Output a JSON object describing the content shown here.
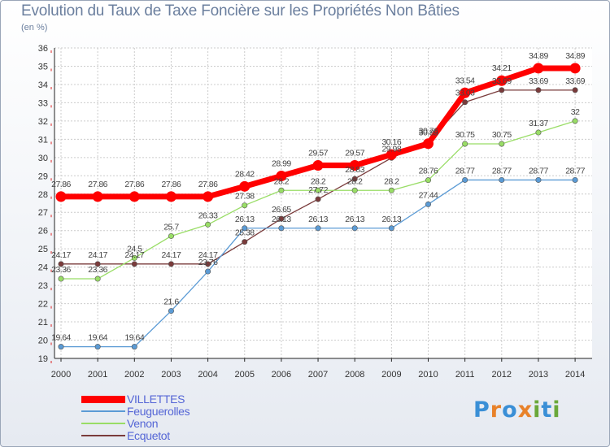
{
  "title": "Evolution du Taux de Taxe Foncière sur les Propriétés Non Bâties",
  "unit": "(en %)",
  "logo": {
    "letters": [
      "P",
      "r",
      "o",
      "x",
      "i",
      "t",
      "i"
    ],
    "colors": [
      "#3a8fd6",
      "#e8822a",
      "#3a8fd6",
      "#e8822a",
      "#6aa83a",
      "#3a8fd6",
      "#6aa83a"
    ]
  },
  "chart_data": {
    "type": "line",
    "title": "Evolution du Taux de Taxe Foncière sur les Propriétés Non Bâties",
    "ylabel": "(en %)",
    "xlabel": "",
    "x": [
      "2000",
      "2001",
      "2002",
      "2003",
      "2004",
      "2005",
      "2006",
      "2007",
      "2008",
      "2009",
      "2010",
      "2011",
      "2012",
      "2013",
      "2014"
    ],
    "ylim": [
      19,
      36
    ],
    "yticks": [
      19,
      20,
      21,
      22,
      23,
      24,
      25,
      26,
      27,
      28,
      29,
      30,
      31,
      32,
      33,
      34,
      35,
      36
    ],
    "grid": true,
    "legend": "bottom-left",
    "series": [
      {
        "name": "VILLETTES",
        "color": "#ff0000",
        "values": [
          27.86,
          27.86,
          27.86,
          27.86,
          27.86,
          28.42,
          28.99,
          29.57,
          29.57,
          30.16,
          30.76,
          33.54,
          34.21,
          34.89,
          34.89
        ],
        "labels": [
          "27.86",
          "27.86",
          "27.86",
          "27.86",
          "27.86",
          "28.42",
          "28.99",
          "29.57",
          "29.57",
          "30.16",
          "30.76",
          "33.54",
          "34.21",
          "34.89",
          "34.89"
        ]
      },
      {
        "name": "Feuguerolles",
        "color": "#5b9bd5",
        "values": [
          19.64,
          19.64,
          19.64,
          21.6,
          23.76,
          26.13,
          26.13,
          26.13,
          26.13,
          26.13,
          27.44,
          28.77,
          28.77,
          28.77,
          28.77
        ],
        "labels": [
          "19.64",
          "19.64",
          "19.64",
          "21.6",
          "23.76",
          "26.13",
          "26.13",
          "26.13",
          "26.13",
          "26.13",
          "27.44",
          "28.77",
          "28.77",
          "28.77",
          "28.77"
        ]
      },
      {
        "name": "Venon",
        "color": "#99dd66",
        "values": [
          23.36,
          23.36,
          24.5,
          25.7,
          26.33,
          27.38,
          28.2,
          28.2,
          28.2,
          28.2,
          28.76,
          30.75,
          30.75,
          31.37,
          32
        ],
        "labels": [
          "23.36",
          "23.36",
          "24.5",
          "25.7",
          "26.33",
          "27.38",
          "28.2",
          "28.2",
          "28.2",
          "28.2",
          "28.76",
          "30.75",
          "30.75",
          "31.37",
          "32"
        ]
      },
      {
        "name": "Ecquetot",
        "color": "#7a3b3b",
        "values": [
          24.17,
          24.17,
          24.17,
          24.17,
          24.17,
          25.38,
          26.65,
          27.72,
          28.83,
          29.98,
          30.85,
          33.03,
          33.69,
          33.69,
          33.69
        ],
        "labels": [
          "24.17",
          "24.17",
          "24.17",
          "24.17",
          "24.17",
          "25.38",
          "26.65",
          "27.72",
          "28.83",
          "29.98",
          "30.85",
          "33.03",
          "33.69",
          "33.69",
          "33.69"
        ]
      }
    ]
  }
}
